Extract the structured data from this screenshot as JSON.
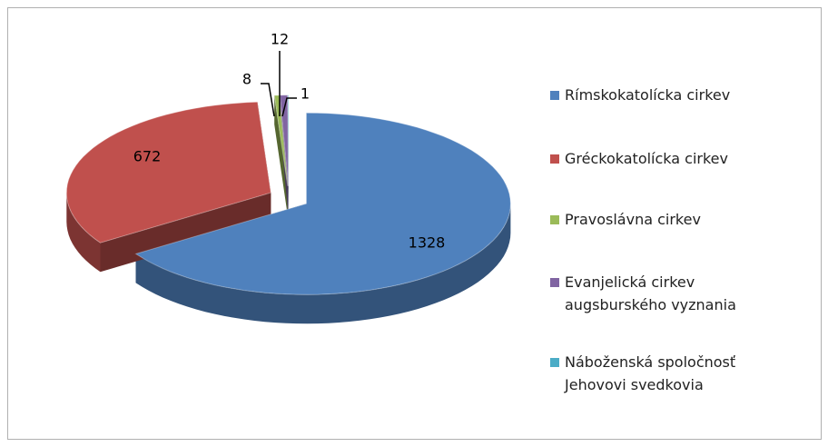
{
  "chart_data": {
    "type": "pie",
    "categories": [
      "Rímskokatolícka cirkev",
      "Gréckokatolícka cirkev",
      "Pravoslávna cirkev",
      "Evanjelická cirkev augsburského vyznania",
      "Náboženská spoločnosť Jehovovi svedkovia"
    ],
    "values": [
      1328,
      672,
      8,
      12,
      1
    ],
    "colors": [
      "#4f81bd",
      "#c0504d",
      "#9bbb59",
      "#8064a2",
      "#4bacc6"
    ],
    "legend": "right"
  }
}
